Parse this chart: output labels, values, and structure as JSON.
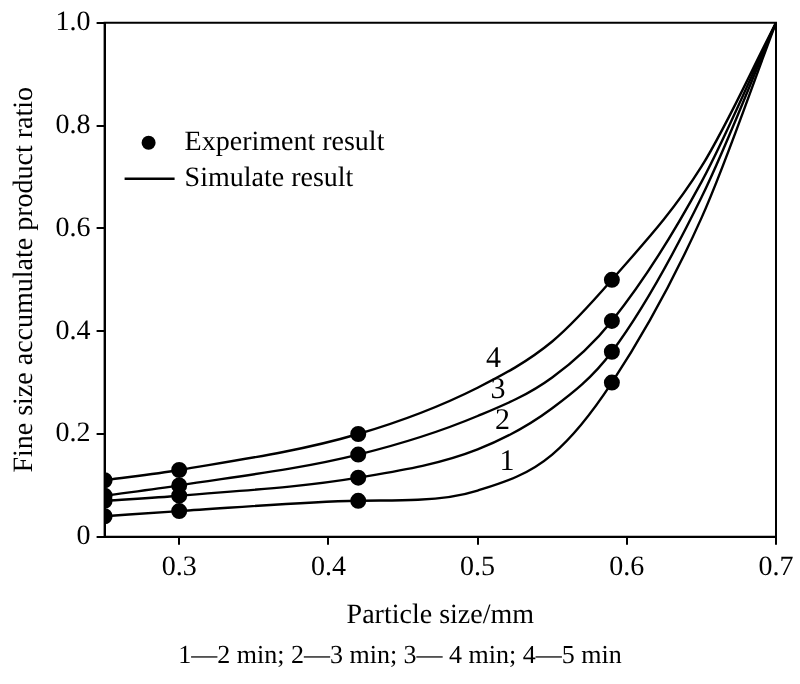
{
  "chart_data": {
    "type": "line",
    "xlabel": "Particle size/mm",
    "ylabel": "Fine size accumulate product ratio",
    "xlim": [
      0.25,
      0.7
    ],
    "xticks": [
      0.3,
      0.4,
      0.5,
      0.6,
      0.7
    ],
    "ylim": [
      0,
      1
    ],
    "yticks": [
      0,
      0.2,
      0.4,
      0.6,
      0.8,
      {
        "value": 1,
        "label": "1.0"
      }
    ],
    "grid": false,
    "legend": "top left",
    "series": [
      {
        "name": "Experiment result",
        "type": "scatter",
        "marker": "circle",
        "color": "#000000",
        "x": [
          0.25,
          0.3,
          0.42,
          0.59
        ],
        "values": [
          0.04,
          0.05,
          0.07,
          0.3
        ]
      },
      {
        "type": "scatter",
        "marker": "circle",
        "color": "#000000",
        "x": [
          0.25,
          0.3,
          0.42,
          0.59
        ],
        "values": [
          0.07,
          0.08,
          0.115,
          0.36
        ]
      },
      {
        "type": "scatter",
        "marker": "circle",
        "color": "#000000",
        "x": [
          0.25,
          0.3,
          0.42,
          0.59
        ],
        "values": [
          0.08,
          0.1,
          0.16,
          0.42
        ]
      },
      {
        "type": "scatter",
        "marker": "circle",
        "color": "#000000",
        "x": [
          0.25,
          0.3,
          0.42,
          0.59
        ],
        "values": [
          0.11,
          0.13,
          0.2,
          0.5
        ]
      },
      {
        "name": "Simulate result",
        "marker": "none",
        "line_style": "solid",
        "color": "#000000",
        "x": [
          0.25,
          0.3,
          0.42,
          0.46,
          0.5,
          0.55,
          0.59,
          0.65,
          0.7
        ],
        "values": [
          0.04,
          0.05,
          0.07,
          0.072,
          0.09,
          0.16,
          0.3,
          0.62,
          1.0
        ]
      },
      {
        "marker": "none",
        "line_style": "solid",
        "color": "#000000",
        "x": [
          0.25,
          0.3,
          0.42,
          0.5,
          0.55,
          0.59,
          0.65,
          0.7
        ],
        "values": [
          0.07,
          0.08,
          0.115,
          0.17,
          0.25,
          0.36,
          0.66,
          1.0
        ]
      },
      {
        "marker": "none",
        "line_style": "solid",
        "color": "#000000",
        "x": [
          0.25,
          0.3,
          0.42,
          0.5,
          0.55,
          0.59,
          0.65,
          0.7
        ],
        "values": [
          0.08,
          0.1,
          0.16,
          0.235,
          0.31,
          0.42,
          0.69,
          1.0
        ]
      },
      {
        "marker": "none",
        "line_style": "solid",
        "color": "#000000",
        "x": [
          0.25,
          0.3,
          0.42,
          0.5,
          0.55,
          0.59,
          0.65,
          0.7
        ],
        "values": [
          0.11,
          0.13,
          0.2,
          0.29,
          0.38,
          0.5,
          0.72,
          1.0
        ]
      }
    ],
    "annotations": [
      {
        "text": "1",
        "x": 0.512,
        "y": 0.1
      },
      {
        "text": "2",
        "x": 0.509,
        "y": 0.18
      },
      {
        "text": "3",
        "x": 0.506,
        "y": 0.24
      },
      {
        "text": "4",
        "x": 0.503,
        "y": 0.3
      },
      "1—2 min; 2—3 min; 3— 4 min; 4—5 min"
    ]
  }
}
